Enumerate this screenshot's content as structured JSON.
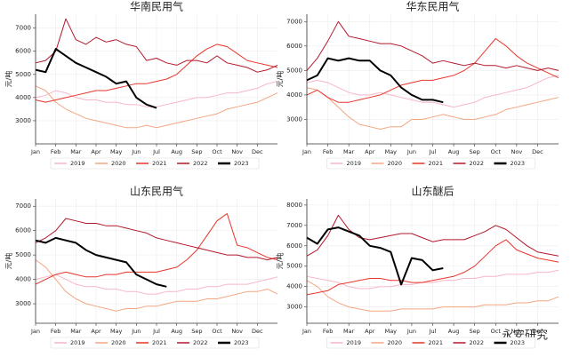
{
  "watermark": "永安研究",
  "chart_data": [
    {
      "type": "line",
      "title": "华南民用气",
      "ylabel": "元/吨",
      "x": [
        0,
        0.5,
        1,
        1.5,
        2,
        2.5,
        3,
        3.5,
        4,
        4.5,
        5,
        5.5,
        6,
        6.5,
        7,
        7.5,
        8,
        8.5,
        9,
        9.5,
        10,
        10.5,
        11,
        11.5,
        12
      ],
      "xlim": [
        0,
        12
      ],
      "xticks": [
        {
          "value": 0,
          "label": "Jan"
        },
        {
          "value": 1,
          "label": "Feb"
        },
        {
          "value": 2,
          "label": "Mar"
        },
        {
          "value": 3,
          "label": "Apr"
        },
        {
          "value": 4,
          "label": "May"
        },
        {
          "value": 5,
          "label": "Jun"
        },
        {
          "value": 6,
          "label": "Jul"
        },
        {
          "value": 7,
          "label": "Aug"
        },
        {
          "value": 8,
          "label": "Sep"
        },
        {
          "value": 9,
          "label": "Oct"
        },
        {
          "value": 10,
          "label": "Nov"
        },
        {
          "value": 11,
          "label": "Dec"
        }
      ],
      "ylim": [
        2000,
        7600
      ],
      "yticks": [
        3000,
        4000,
        5000,
        6000,
        7000
      ],
      "grid": true,
      "legend": "bottom",
      "series": [
        {
          "name": "2019",
          "color": "#f7b6c8",
          "width": 1,
          "values": [
            4000,
            4100,
            4300,
            4200,
            4000,
            3900,
            3900,
            3800,
            3800,
            3700,
            3700,
            3600,
            3600,
            3700,
            3800,
            3900,
            4000,
            4000,
            4100,
            4200,
            4200,
            4300,
            4400,
            4600,
            4700
          ]
        },
        {
          "name": "2020",
          "color": "#f4a582",
          "width": 1,
          "values": [
            4500,
            4300,
            3800,
            3500,
            3300,
            3100,
            3000,
            2900,
            2800,
            2700,
            2700,
            2800,
            2700,
            2800,
            2900,
            3000,
            3100,
            3200,
            3300,
            3500,
            3600,
            3700,
            3800,
            4000,
            4200
          ]
        },
        {
          "name": "2021",
          "color": "#e8352b",
          "width": 1,
          "values": [
            3900,
            3800,
            3900,
            4000,
            4100,
            4200,
            4300,
            4300,
            4400,
            4500,
            4600,
            4600,
            4700,
            4800,
            5000,
            5400,
            5800,
            6100,
            6300,
            6200,
            5900,
            5600,
            5500,
            5400,
            5300
          ]
        },
        {
          "name": "2022",
          "color": "#b2182b",
          "width": 1,
          "values": [
            5500,
            5600,
            6000,
            7400,
            6500,
            6300,
            6600,
            6400,
            6500,
            6300,
            6200,
            5600,
            5700,
            5500,
            5400,
            5600,
            5600,
            5500,
            5800,
            5500,
            5400,
            5300,
            5100,
            5200,
            5400
          ]
        },
        {
          "name": "2023",
          "color": "#000000",
          "width": 2,
          "values": [
            5200,
            5100,
            6100,
            5800,
            5500,
            5300,
            5100,
            4900,
            4600,
            4700,
            4000,
            3700,
            3550,
            null,
            null,
            null,
            null,
            null,
            null,
            null,
            null,
            null,
            null,
            null,
            null
          ]
        }
      ]
    },
    {
      "type": "line",
      "title": "华东民用气",
      "ylabel": "元/吨",
      "x": [
        0,
        0.5,
        1,
        1.5,
        2,
        2.5,
        3,
        3.5,
        4,
        4.5,
        5,
        5.5,
        6,
        6.5,
        7,
        7.5,
        8,
        8.5,
        9,
        9.5,
        10,
        10.5,
        11,
        11.5,
        12
      ],
      "xlim": [
        0,
        12
      ],
      "xticks": [
        {
          "value": 0,
          "label": "Jan"
        },
        {
          "value": 1,
          "label": "Feb"
        },
        {
          "value": 2,
          "label": "Mar"
        },
        {
          "value": 3,
          "label": "Apr"
        },
        {
          "value": 4,
          "label": "May"
        },
        {
          "value": 5,
          "label": "Jun"
        },
        {
          "value": 6,
          "label": "Jul"
        },
        {
          "value": 7,
          "label": "Aug"
        },
        {
          "value": 8,
          "label": "Sep"
        },
        {
          "value": 9,
          "label": "Oct"
        },
        {
          "value": 10,
          "label": "Nov"
        },
        {
          "value": 11,
          "label": "Dec"
        }
      ],
      "ylim": [
        2000,
        7300
      ],
      "yticks": [
        3000,
        4000,
        5000,
        6000,
        7000
      ],
      "grid": true,
      "legend": "bottom",
      "series": [
        {
          "name": "2019",
          "color": "#f7b6c8",
          "width": 1,
          "values": [
            4500,
            4600,
            4500,
            4300,
            4100,
            4000,
            4000,
            4100,
            4000,
            3900,
            3800,
            3700,
            3700,
            3600,
            3500,
            3600,
            3700,
            3900,
            4000,
            4100,
            4200,
            4300,
            4500,
            4700,
            4800
          ]
        },
        {
          "name": "2020",
          "color": "#f4a582",
          "width": 1,
          "values": [
            4300,
            4200,
            3900,
            3500,
            3100,
            2800,
            2700,
            2600,
            2700,
            2700,
            3000,
            3000,
            3100,
            3200,
            3100,
            3000,
            3000,
            3100,
            3200,
            3400,
            3500,
            3600,
            3700,
            3800,
            3900
          ]
        },
        {
          "name": "2021",
          "color": "#e8352b",
          "width": 1,
          "values": [
            4000,
            4200,
            3900,
            3700,
            3700,
            3800,
            3900,
            4000,
            4200,
            4400,
            4500,
            4600,
            4600,
            4700,
            4800,
            5000,
            5300,
            5800,
            6300,
            6000,
            5600,
            5300,
            5100,
            4900,
            4700
          ]
        },
        {
          "name": "2022",
          "color": "#b2182b",
          "width": 1,
          "values": [
            5000,
            5500,
            6200,
            7000,
            6400,
            6300,
            6200,
            6100,
            6100,
            6000,
            5800,
            5600,
            5300,
            5400,
            5300,
            5200,
            5300,
            5200,
            5200,
            5100,
            5200,
            5100,
            5000,
            5100,
            5000
          ]
        },
        {
          "name": "2023",
          "color": "#000000",
          "width": 2,
          "values": [
            4600,
            4800,
            5500,
            5400,
            5500,
            5400,
            5400,
            5000,
            4800,
            4300,
            4000,
            3800,
            3800,
            3700,
            null,
            null,
            null,
            null,
            null,
            null,
            null,
            null,
            null,
            null,
            null
          ]
        }
      ]
    },
    {
      "type": "line",
      "title": "山东民用气",
      "ylabel": "元/吨",
      "x": [
        0,
        0.5,
        1,
        1.5,
        2,
        2.5,
        3,
        3.5,
        4,
        4.5,
        5,
        5.5,
        6,
        6.5,
        7,
        7.5,
        8,
        8.5,
        9,
        9.5,
        10,
        10.5,
        11,
        11.5,
        12
      ],
      "xlim": [
        0,
        12
      ],
      "xticks": [
        {
          "value": 0,
          "label": "Jan"
        },
        {
          "value": 1,
          "label": "Feb"
        },
        {
          "value": 2,
          "label": "Mar"
        },
        {
          "value": 3,
          "label": "Apr"
        },
        {
          "value": 4,
          "label": "May"
        },
        {
          "value": 5,
          "label": "Jun"
        },
        {
          "value": 6,
          "label": "Jul"
        },
        {
          "value": 7,
          "label": "Aug"
        },
        {
          "value": 8,
          "label": "Sep"
        },
        {
          "value": 9,
          "label": "Oct"
        },
        {
          "value": 10,
          "label": "Nov"
        },
        {
          "value": 11,
          "label": "Dec"
        }
      ],
      "ylim": [
        2200,
        7300
      ],
      "yticks": [
        3000,
        4000,
        5000,
        6000,
        7000
      ],
      "grid": true,
      "legend": "bottom",
      "series": [
        {
          "name": "2019",
          "color": "#f7b6c8",
          "width": 1,
          "values": [
            4000,
            4100,
            4200,
            4000,
            3800,
            3700,
            3700,
            3600,
            3600,
            3500,
            3500,
            3400,
            3400,
            3500,
            3500,
            3600,
            3600,
            3700,
            3700,
            3800,
            3800,
            3800,
            3900,
            4000,
            4100
          ]
        },
        {
          "name": "2020",
          "color": "#f4a582",
          "width": 1,
          "values": [
            4800,
            4500,
            4000,
            3500,
            3200,
            3000,
            2900,
            2800,
            2700,
            2800,
            2800,
            2900,
            2900,
            3000,
            3100,
            3100,
            3100,
            3200,
            3200,
            3300,
            3400,
            3500,
            3500,
            3600,
            3400
          ]
        },
        {
          "name": "2021",
          "color": "#e8352b",
          "width": 1,
          "values": [
            3800,
            4000,
            4200,
            4300,
            4200,
            4100,
            4100,
            4200,
            4200,
            4300,
            4300,
            4300,
            4300,
            4400,
            4500,
            4800,
            5200,
            5800,
            6400,
            6700,
            5400,
            5300,
            5100,
            4900,
            4800
          ]
        },
        {
          "name": "2022",
          "color": "#b2182b",
          "width": 1,
          "values": [
            5500,
            5700,
            6000,
            6500,
            6400,
            6300,
            6300,
            6200,
            6200,
            6100,
            6000,
            5900,
            5700,
            5600,
            5500,
            5400,
            5300,
            5200,
            5100,
            5000,
            5000,
            4900,
            4900,
            4800,
            4900
          ]
        },
        {
          "name": "2023",
          "color": "#000000",
          "width": 2,
          "values": [
            5600,
            5500,
            5700,
            5600,
            5500,
            5200,
            5000,
            4900,
            4800,
            4700,
            4200,
            4000,
            3800,
            3700,
            null,
            null,
            null,
            null,
            null,
            null,
            null,
            null,
            null,
            null,
            null
          ]
        }
      ]
    },
    {
      "type": "line",
      "title": "山东醚后",
      "ylabel": "元/吨",
      "x": [
        0,
        0.5,
        1,
        1.5,
        2,
        2.5,
        3,
        3.5,
        4,
        4.5,
        5,
        5.5,
        6,
        6.5,
        7,
        7.5,
        8,
        8.5,
        9,
        9.5,
        10,
        10.5,
        11,
        11.5,
        12
      ],
      "xlim": [
        0,
        12
      ],
      "xticks": [
        {
          "value": 0,
          "label": "Jan"
        },
        {
          "value": 1,
          "label": "Feb"
        },
        {
          "value": 2,
          "label": "Mar"
        },
        {
          "value": 3,
          "label": "Apr"
        },
        {
          "value": 4,
          "label": "May"
        },
        {
          "value": 5,
          "label": "Jun"
        },
        {
          "value": 6,
          "label": "Jul"
        },
        {
          "value": 7,
          "label": "Aug"
        },
        {
          "value": 8,
          "label": "Sep"
        },
        {
          "value": 9,
          "label": "Oct"
        },
        {
          "value": 10,
          "label": "Nov"
        },
        {
          "value": 11,
          "label": "Dec"
        }
      ],
      "ylim": [
        2200,
        8300
      ],
      "yticks": [
        3000,
        4000,
        5000,
        6000,
        7000,
        8000
      ],
      "grid": true,
      "legend": "bottom",
      "series": [
        {
          "name": "2019",
          "color": "#f7b6c8",
          "width": 1,
          "values": [
            4500,
            4400,
            4300,
            4200,
            4000,
            3900,
            3900,
            4000,
            4000,
            4100,
            4100,
            4200,
            4200,
            4300,
            4300,
            4400,
            4400,
            4500,
            4500,
            4600,
            4600,
            4600,
            4700,
            4700,
            4800
          ]
        },
        {
          "name": "2020",
          "color": "#f4a582",
          "width": 1,
          "values": [
            4300,
            4000,
            3500,
            3200,
            3000,
            2900,
            2800,
            2800,
            2800,
            2900,
            2900,
            2900,
            2900,
            3000,
            3000,
            3000,
            3000,
            3100,
            3100,
            3100,
            3200,
            3200,
            3300,
            3300,
            3500
          ]
        },
        {
          "name": "2021",
          "color": "#e8352b",
          "width": 1,
          "values": [
            3600,
            3700,
            3800,
            4100,
            4200,
            4300,
            4400,
            4400,
            4300,
            4300,
            4200,
            4200,
            4300,
            4400,
            4500,
            4700,
            5000,
            5500,
            6000,
            6300,
            5800,
            5600,
            5400,
            5300,
            5200
          ]
        },
        {
          "name": "2022",
          "color": "#b2182b",
          "width": 1,
          "values": [
            5500,
            5800,
            6500,
            7500,
            6800,
            6400,
            6300,
            6400,
            6500,
            6600,
            6600,
            6400,
            6200,
            6300,
            6300,
            6300,
            6500,
            6700,
            7000,
            6800,
            6400,
            6000,
            5700,
            5600,
            5500
          ]
        },
        {
          "name": "2023",
          "color": "#000000",
          "width": 2,
          "values": [
            6400,
            6100,
            6800,
            6900,
            6700,
            6500,
            6000,
            5900,
            5700,
            4100,
            5400,
            5300,
            4800,
            4900,
            null,
            null,
            null,
            null,
            null,
            null,
            null,
            null,
            null,
            null,
            null
          ]
        }
      ]
    }
  ]
}
